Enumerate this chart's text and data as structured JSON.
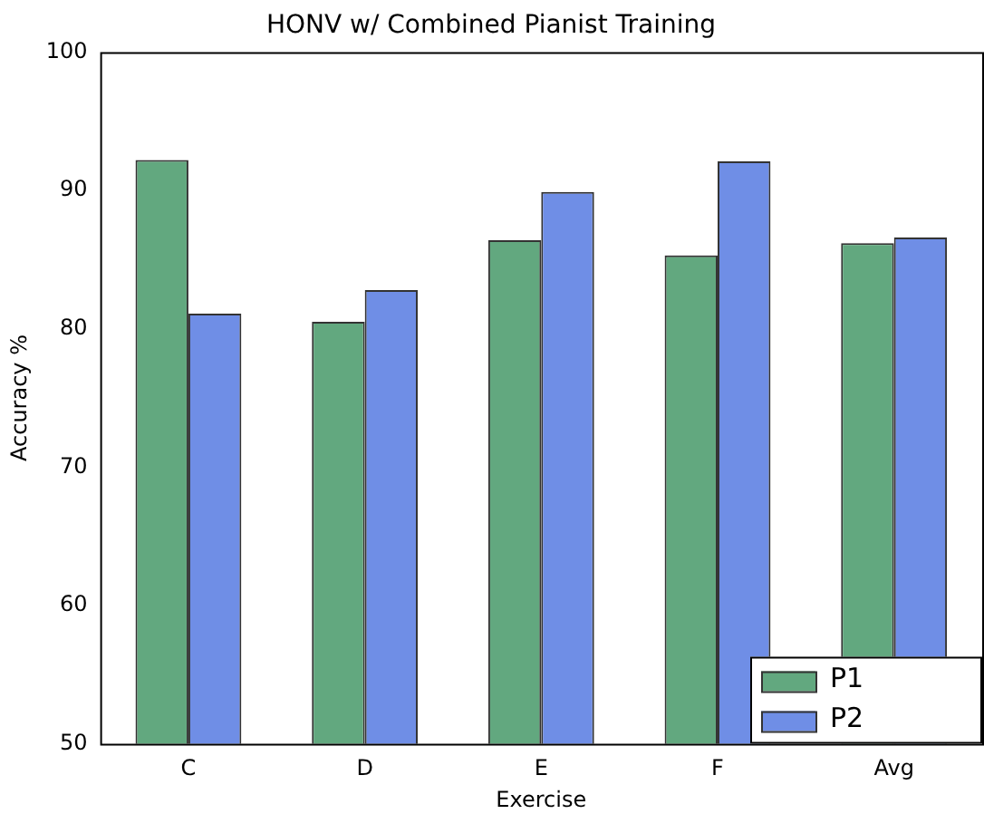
{
  "chart_data": {
    "type": "bar",
    "title": "HONV w/ Combined Pianist Training",
    "xlabel": "Exercise",
    "ylabel": "Accuracy %",
    "categories": [
      "C",
      "D",
      "E",
      "F",
      "Avg"
    ],
    "series": [
      {
        "name": "P1",
        "color": "#62a87f",
        "values": [
          92.2,
          80.5,
          86.4,
          85.3,
          86.2
        ]
      },
      {
        "name": "P2",
        "color": "#6f8ee6",
        "values": [
          81.1,
          82.8,
          89.9,
          92.1,
          86.6
        ]
      }
    ],
    "ylim": [
      50,
      100
    ],
    "yticks": [
      50,
      60,
      70,
      80,
      90,
      100
    ],
    "grid": false,
    "legend": "bottom right"
  }
}
